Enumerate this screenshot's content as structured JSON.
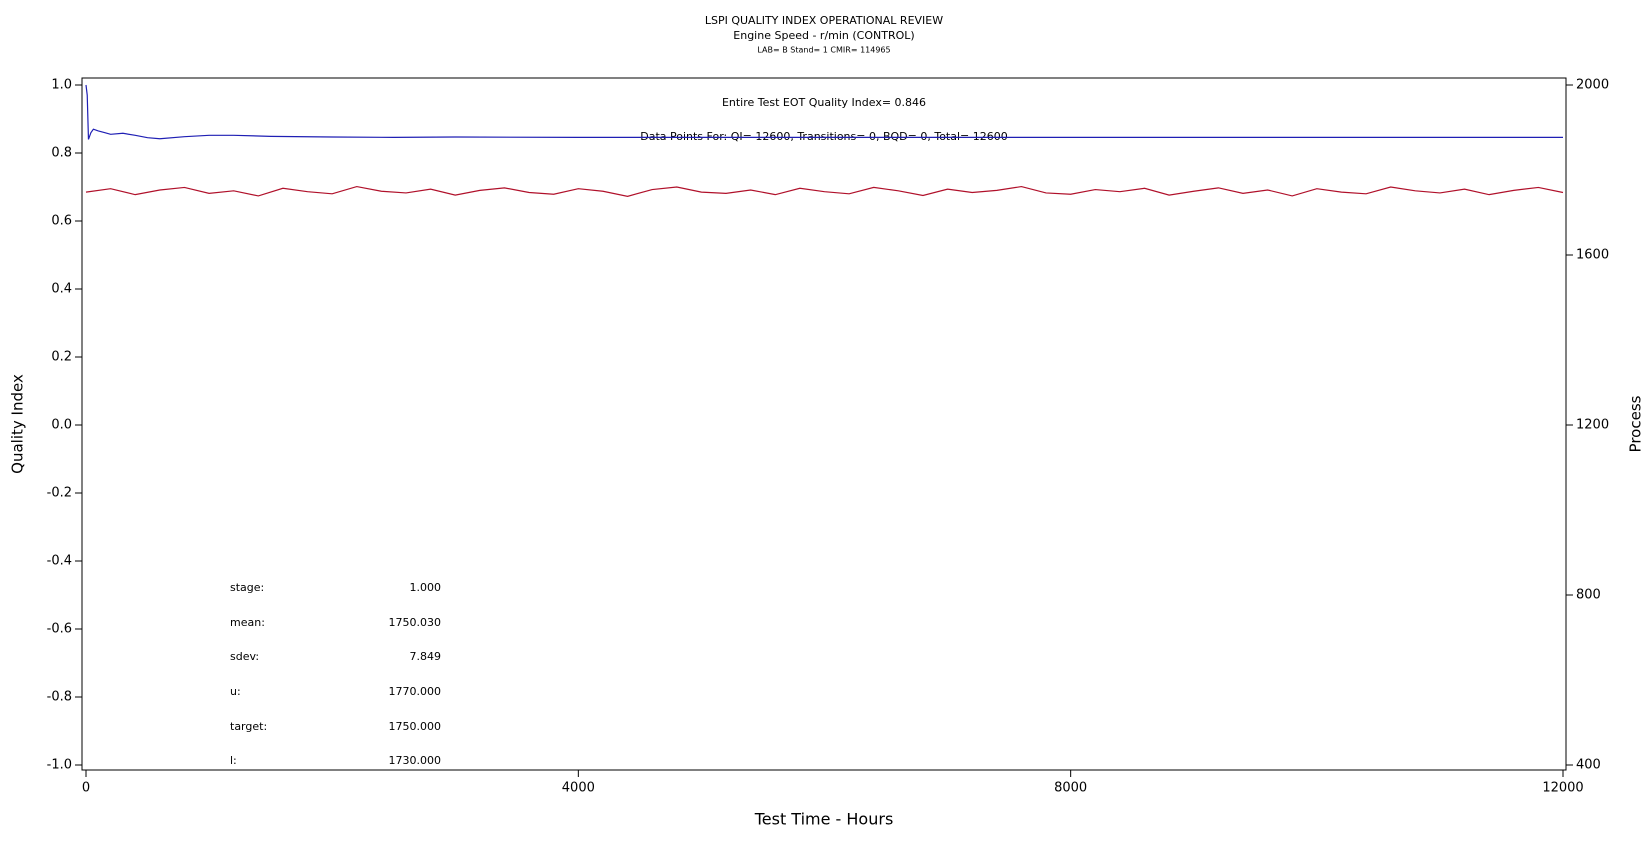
{
  "chart_data": {
    "type": "line",
    "title": "LSPI QUALITY INDEX OPERATIONAL REVIEW",
    "subtitle": "Engine Speed - r/min (CONTROL)",
    "subtitle2": "LAB= B Stand= 1 CMIR= 114965",
    "annotations": [
      "Entire Test EOT Quality Index=   0.846",
      "Data Points For: QI= 12600, Transitions=    0, BQD=    0, Total= 12600"
    ],
    "stats": [
      {
        "label": "stage:",
        "value": "1.000"
      },
      {
        "label": "mean:",
        "value": "1750.030"
      },
      {
        "label": "sdev:",
        "value": "7.849"
      },
      {
        "label": "u:",
        "value": "1770.000"
      },
      {
        "label": "target:",
        "value": "1750.000"
      },
      {
        "label": "l:",
        "value": "1730.000"
      }
    ],
    "xlabel": "Test Time - Hours",
    "ylabel": "Quality Index",
    "y2label": "Process",
    "xlim": [
      0,
      12000
    ],
    "xticks": [
      0,
      4000,
      8000,
      12000
    ],
    "ylim": [
      -1,
      1
    ],
    "yticks": [
      {
        "value": -1,
        "label": "-1.0"
      },
      -0.8,
      -0.6,
      -0.4,
      -0.2,
      {
        "value": 0,
        "label": "0.0"
      },
      0.2,
      0.4,
      0.6,
      0.8,
      {
        "value": 1,
        "label": "1.0"
      }
    ],
    "y2lim": [
      400,
      2000
    ],
    "y2ticks": [
      400,
      800,
      1200,
      1600,
      2000
    ],
    "series": [
      {
        "color": "#1f1fb4",
        "axis": "y",
        "x": [
          0,
          10,
          20,
          40,
          60,
          100,
          150,
          200,
          300,
          400,
          500,
          600,
          800,
          1000,
          1200,
          1500,
          2000,
          2500,
          3000,
          4000,
          5000,
          6000,
          7000,
          8000,
          9000,
          10000,
          11000,
          12000
        ],
        "values": [
          1.0,
          0.97,
          0.84,
          0.86,
          0.87,
          0.865,
          0.86,
          0.855,
          0.858,
          0.852,
          0.845,
          0.842,
          0.848,
          0.852,
          0.852,
          0.849,
          0.847,
          0.846,
          0.847,
          0.846,
          0.846,
          0.846,
          0.846,
          0.846,
          0.846,
          0.846,
          0.846,
          0.846
        ]
      },
      {
        "color": "#b0102a",
        "axis": "y2",
        "x": [
          0,
          200,
          400,
          600,
          800,
          1000,
          1200,
          1400,
          1600,
          1800,
          2000,
          2200,
          2400,
          2600,
          2800,
          3000,
          3200,
          3400,
          3600,
          3800,
          4000,
          4200,
          4400,
          4600,
          4800,
          5000,
          5200,
          5400,
          5600,
          5800,
          6000,
          6200,
          6400,
          6600,
          6800,
          7000,
          7200,
          7400,
          7600,
          7800,
          8000,
          8200,
          8400,
          8600,
          8800,
          9000,
          9200,
          9400,
          9600,
          9800,
          10000,
          10200,
          10400,
          10600,
          10800,
          11000,
          11200,
          11400,
          11600,
          11800,
          12000
        ],
        "values": [
          1748,
          1756,
          1742,
          1753,
          1759,
          1745,
          1751,
          1739,
          1757,
          1749,
          1744,
          1761,
          1750,
          1746,
          1755,
          1741,
          1752,
          1758,
          1747,
          1743,
          1756,
          1750,
          1738,
          1754,
          1760,
          1748,
          1745,
          1753,
          1742,
          1757,
          1749,
          1744,
          1759,
          1751,
          1740,
          1755,
          1747,
          1752,
          1761,
          1746,
          1743,
          1754,
          1749,
          1757,
          1741,
          1750,
          1758,
          1745,
          1753,
          1739,
          1756,
          1748,
          1744,
          1760,
          1751,
          1746,
          1755,
          1742,
          1752,
          1759,
          1747
        ]
      }
    ]
  }
}
